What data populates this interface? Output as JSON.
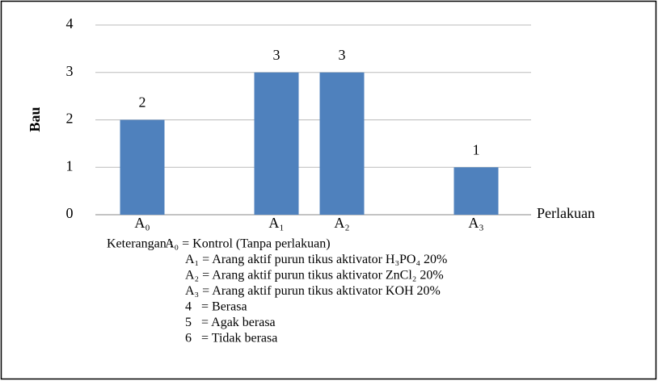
{
  "chart_data": {
    "type": "bar",
    "categories": [
      "A₀",
      "A₁",
      "A₂",
      "A₃"
    ],
    "values": [
      2,
      3,
      3,
      1
    ],
    "color": "#4f81bd",
    "ylim": [
      0,
      4
    ],
    "yticks": [
      0,
      1,
      2,
      3,
      4
    ],
    "grid": true,
    "y_label": "Bau",
    "x_label": "Perlakuan",
    "legend_title": "Keterangan :",
    "notes": [
      "A₀ = Kontrol (Tanpa perlakuan)",
      "A₁ = Arang aktif purun tikus aktivator H₃PO₄ 20%",
      "A₂ = Arang aktif purun tikus aktivator ZnCl₂ 20%",
      "A₃ = Arang aktif purun tikus aktivator KOH 20%",
      "4   = Berasa",
      "5   = Agak berasa",
      "6   = Tidak berasa"
    ]
  }
}
